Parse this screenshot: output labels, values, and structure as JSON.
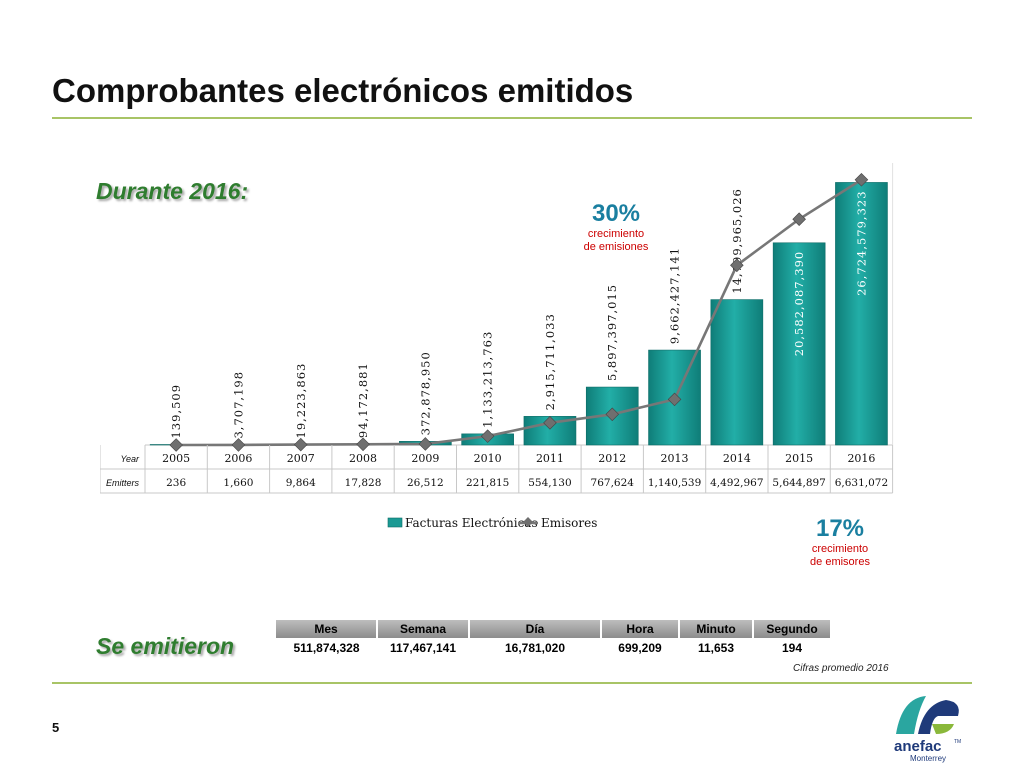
{
  "slide": {
    "title": "Comprobantes electrónicos emitidos",
    "durante_label": "Durante 2016:",
    "se_emitieron_label": "Se emitieron",
    "page_number": "5",
    "cifras_note": "Cifras promedio 2016"
  },
  "growth_emisiones": {
    "pct": "30%",
    "line1": "crecimiento",
    "line2": "de emisiones"
  },
  "growth_emisores": {
    "pct": "17%",
    "line1": "crecimiento",
    "line2": "de emisores"
  },
  "chart_data": {
    "type": "bar",
    "categories": [
      "2005",
      "2006",
      "2007",
      "2008",
      "2009",
      "2010",
      "2011",
      "2012",
      "2013",
      "2014",
      "2015",
      "2016"
    ],
    "row_labels": {
      "year": "Year",
      "emitters": "Emitters"
    },
    "series": [
      {
        "name": "Facturas Electrónicas",
        "values": [
          139509,
          3707198,
          19223863,
          94172881,
          372878950,
          1133213763,
          2915711033,
          5897397015,
          9662427141,
          14799965026,
          20582087390,
          26724579323
        ],
        "labels": [
          "139,509",
          "3,707,198",
          "19,223,863",
          "94,172,881",
          "372,878,950",
          "1,133,213,763",
          "2,915,711,033",
          "5,897,397,015",
          "9,662,427,141",
          "14,799,965,026",
          "20,582,087,390",
          "26,724,579,323"
        ],
        "color": "#1b9a94"
      },
      {
        "name": "Emisores",
        "values": [
          236,
          1660,
          9864,
          17828,
          26512,
          221815,
          554130,
          767624,
          1140539,
          4492967,
          5644897,
          6631072
        ],
        "labels": [
          "236",
          "1,660",
          "9,864",
          "17,828",
          "26,512",
          "221,815",
          "554,130",
          "767,624",
          "1,140,539",
          "4,492,967",
          "5,644,897",
          "6,631,072"
        ],
        "color": "#777777"
      }
    ],
    "bar_ylim": [
      0,
      28500000000
    ],
    "line_ylim": [
      0,
      7000000
    ],
    "legend_position": "bottom-center",
    "grid": false
  },
  "stats_table": {
    "headers": [
      "Mes",
      "Semana",
      "Día",
      "Hora",
      "Minuto",
      "Segundo"
    ],
    "values": [
      "511,874,328",
      "117,467,141",
      "16,781,020",
      "699,209",
      "11,653",
      "194"
    ]
  },
  "logo": {
    "name": "anefac",
    "sub": "Monterrey",
    "tm": "TM",
    "colors": {
      "teal": "#2aa6a0",
      "navy": "#1f3a7a",
      "green": "#8ab83a"
    }
  }
}
